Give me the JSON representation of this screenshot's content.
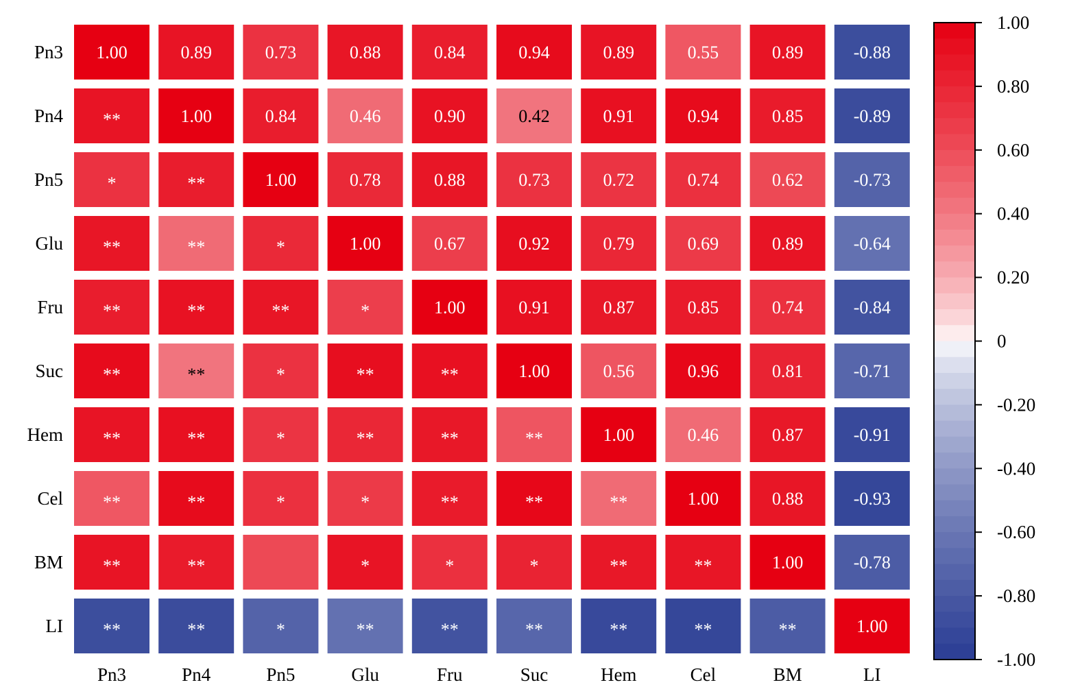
{
  "chart_data": {
    "type": "heatmap",
    "title": "",
    "rows": [
      "Pn3",
      "Pn4",
      "Pn5",
      "Glu",
      "Fru",
      "Suc",
      "Hem",
      "Cel",
      "BM",
      "LI"
    ],
    "columns": [
      "Pn3",
      "Pn4",
      "Pn5",
      "Glu",
      "Fru",
      "Suc",
      "Hem",
      "Cel",
      "BM",
      "LI"
    ],
    "upper_triangle_shows": "correlation coefficient",
    "lower_triangle_shows": "significance marker",
    "values": [
      [
        1.0,
        0.89,
        0.73,
        0.88,
        0.84,
        0.94,
        0.89,
        0.55,
        0.89,
        -0.88
      ],
      [
        0.89,
        1.0,
        0.84,
        0.46,
        0.9,
        0.42,
        0.91,
        0.94,
        0.85,
        -0.89
      ],
      [
        0.73,
        0.84,
        1.0,
        0.78,
        0.88,
        0.73,
        0.72,
        0.74,
        0.62,
        -0.73
      ],
      [
        0.88,
        0.46,
        0.78,
        1.0,
        0.67,
        0.92,
        0.79,
        0.69,
        0.89,
        -0.64
      ],
      [
        0.84,
        0.9,
        0.88,
        0.67,
        1.0,
        0.91,
        0.87,
        0.85,
        0.74,
        -0.84
      ],
      [
        0.94,
        0.42,
        0.73,
        0.92,
        0.91,
        1.0,
        0.56,
        0.96,
        0.81,
        -0.71
      ],
      [
        0.89,
        0.91,
        0.72,
        0.79,
        0.87,
        0.56,
        1.0,
        0.46,
        0.87,
        -0.91
      ],
      [
        0.55,
        0.94,
        0.74,
        0.69,
        0.85,
        0.96,
        0.46,
        1.0,
        0.88,
        -0.93
      ],
      [
        0.89,
        0.85,
        0.62,
        0.89,
        0.74,
        0.81,
        0.87,
        0.88,
        1.0,
        -0.78
      ],
      [
        -0.88,
        -0.89,
        -0.73,
        -0.64,
        -0.84,
        -0.71,
        -0.91,
        -0.93,
        -0.78,
        1.0
      ]
    ],
    "cell_labels": [
      [
        "1.00",
        "0.89",
        "0.73",
        "0.88",
        "0.84",
        "0.94",
        "0.89",
        "0.55",
        "0.89",
        "-0.88"
      ],
      [
        "**",
        "1.00",
        "0.84",
        "0.46",
        "0.90",
        "0.42",
        "0.91",
        "0.94",
        "0.85",
        "-0.89"
      ],
      [
        "*",
        "**",
        "1.00",
        "0.78",
        "0.88",
        "0.73",
        "0.72",
        "0.74",
        "0.62",
        "-0.73"
      ],
      [
        "**",
        "**",
        "*",
        "1.00",
        "0.67",
        "0.92",
        "0.79",
        "0.69",
        "0.89",
        "-0.64"
      ],
      [
        "**",
        "**",
        "**",
        "*",
        "1.00",
        "0.91",
        "0.87",
        "0.85",
        "0.74",
        "-0.84"
      ],
      [
        "**",
        "**",
        "*",
        "**",
        "**",
        "1.00",
        "0.56",
        "0.96",
        "0.81",
        "-0.71"
      ],
      [
        "**",
        "**",
        "*",
        "**",
        "**",
        "**",
        "1.00",
        "0.46",
        "0.87",
        "-0.91"
      ],
      [
        "**",
        "**",
        "*",
        "*",
        "**",
        "**",
        "**",
        "1.00",
        "0.88",
        "-0.93"
      ],
      [
        "**",
        "**",
        "",
        "*",
        "*",
        "*",
        "**",
        "**",
        "1.00",
        "-0.78"
      ],
      [
        "**",
        "**",
        "*",
        "**",
        "**",
        "**",
        "**",
        "**",
        "**",
        "1.00"
      ]
    ],
    "colorbar": {
      "range": [
        -1.0,
        1.0
      ],
      "ticks": [
        1.0,
        0.8,
        0.6,
        0.4,
        0.2,
        0,
        -0.2,
        -0.4,
        -0.6,
        -0.8,
        -1.0
      ],
      "tick_labels": [
        "1.00",
        "0.80",
        "0.60",
        "0.40",
        "0.20",
        "0",
        "-0.20",
        "-0.40",
        "-0.60",
        "-0.80",
        "-1.00"
      ],
      "placement": "right",
      "colors": {
        "negative": "#2a3d94",
        "zero": "#ffffff",
        "positive": "#e60012"
      }
    },
    "grid": false,
    "legend": "colorbar on right"
  }
}
